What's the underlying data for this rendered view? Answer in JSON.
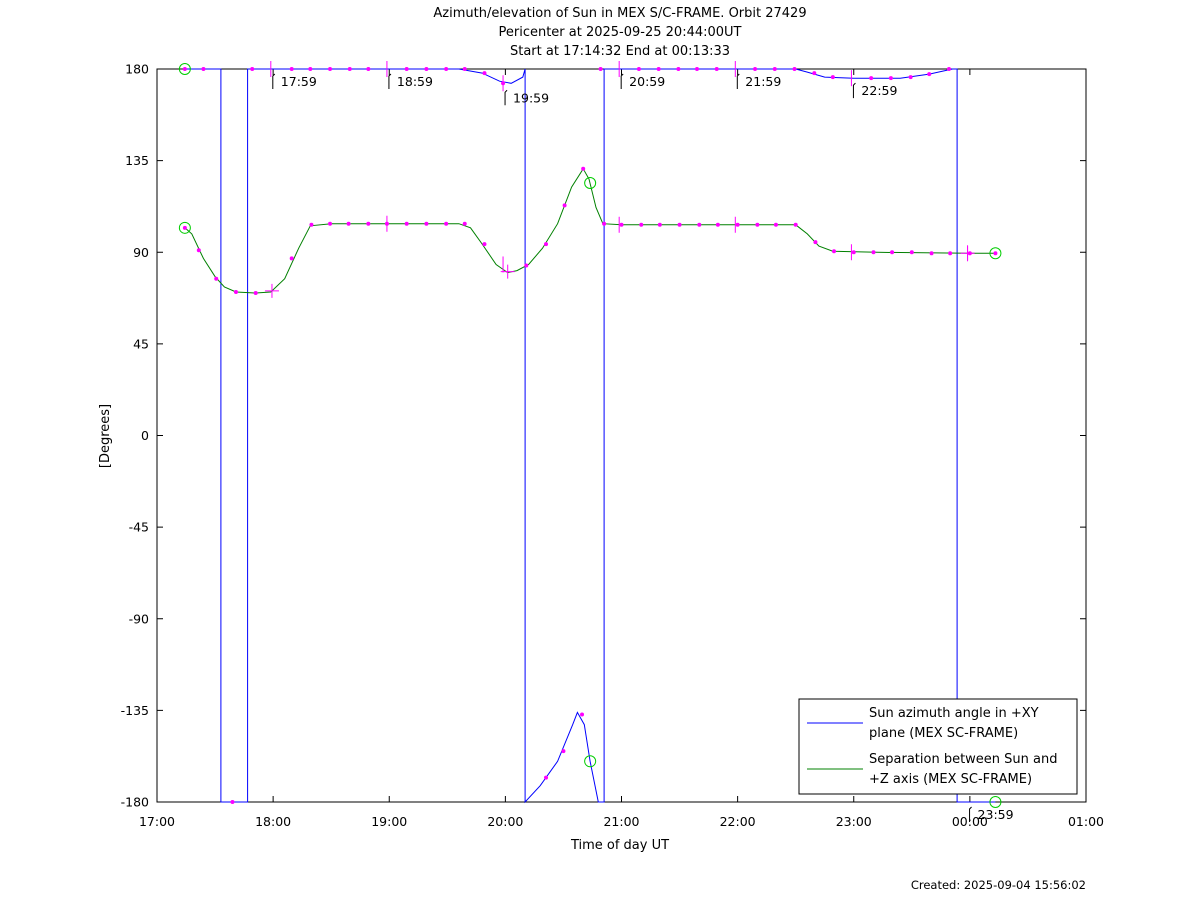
{
  "chart_data": {
    "type": "line",
    "title_lines": [
      "Azimuth/elevation of Sun in MEX S/C-FRAME.  Orbit 27429",
      "Pericenter at 2025-09-25 20:44:00UT",
      "Start at 17:14:32 End at 00:13:33"
    ],
    "xlabel": "Time of day UT",
    "ylabel": "[Degrees]",
    "footer": "Created: 2025-09-04 15:56:02",
    "xlim_hours": [
      17.0,
      25.0
    ],
    "ylim": [
      -180,
      180
    ],
    "xticks": [
      {
        "h": 17,
        "label": "17:00"
      },
      {
        "h": 18,
        "label": "18:00"
      },
      {
        "h": 19,
        "label": "19:00"
      },
      {
        "h": 20,
        "label": "20:00"
      },
      {
        "h": 21,
        "label": "21:00"
      },
      {
        "h": 22,
        "label": "22:00"
      },
      {
        "h": 23,
        "label": "23:00"
      },
      {
        "h": 24,
        "label": "00:00"
      },
      {
        "h": 25,
        "label": "01:00"
      }
    ],
    "yticks": [
      {
        "v": 180,
        "label": "180"
      },
      {
        "v": 135,
        "label": "135"
      },
      {
        "v": 90,
        "label": "90"
      },
      {
        "v": 45,
        "label": "45"
      },
      {
        "v": 0,
        "label": "0"
      },
      {
        "v": -45,
        "label": "-45"
      },
      {
        "v": -90,
        "label": "-90"
      },
      {
        "v": -135,
        "label": "-135"
      },
      {
        "v": -180,
        "label": "-180"
      }
    ],
    "legend": {
      "placement": "lower-right",
      "entries": [
        {
          "lines": [
            "Sun azimuth angle in +XY",
            "plane (MEX SC-FRAME)"
          ],
          "color": "#0000ff"
        },
        {
          "lines": [
            "Separation between Sun and",
            "+Z axis (MEX SC-FRAME)"
          ],
          "color": "#008000"
        }
      ]
    },
    "series": [
      {
        "name": "Sun azimuth angle in +XY plane (MEX SC-FRAME)",
        "color": "#0000ff",
        "points": [
          [
            17.24,
            180
          ],
          [
            17.55,
            180
          ],
          [
            17.55,
            -180
          ],
          [
            17.78,
            -180
          ],
          [
            17.78,
            180
          ],
          [
            18.0,
            180
          ],
          [
            19.0,
            180
          ],
          [
            19.6,
            180
          ],
          [
            19.8,
            178
          ],
          [
            19.95,
            174
          ],
          [
            20.05,
            173
          ],
          [
            20.15,
            176
          ],
          [
            20.17,
            180
          ],
          [
            20.17,
            -180
          ],
          [
            20.3,
            -172
          ],
          [
            20.45,
            -160
          ],
          [
            20.58,
            -142
          ],
          [
            20.62,
            -136
          ],
          [
            20.68,
            -142
          ],
          [
            20.73,
            -160
          ],
          [
            20.8,
            -180
          ],
          [
            20.85,
            -180
          ],
          [
            20.85,
            180
          ],
          [
            21.0,
            180
          ],
          [
            22.5,
            180
          ],
          [
            22.6,
            178.5
          ],
          [
            22.75,
            176
          ],
          [
            23.0,
            175.5
          ],
          [
            23.4,
            175.5
          ],
          [
            23.65,
            177.5
          ],
          [
            23.85,
            180
          ],
          [
            23.89,
            180
          ],
          [
            23.89,
            -180
          ],
          [
            24.22,
            -180
          ]
        ]
      },
      {
        "name": "Separation between Sun and +Z axis (MEX SC-FRAME)",
        "color": "#008000",
        "points": [
          [
            17.24,
            102
          ],
          [
            17.3,
            99
          ],
          [
            17.4,
            87
          ],
          [
            17.5,
            78
          ],
          [
            17.58,
            73
          ],
          [
            17.68,
            70.5
          ],
          [
            17.85,
            70
          ],
          [
            17.98,
            70.5
          ],
          [
            18.1,
            77
          ],
          [
            18.22,
            92
          ],
          [
            18.32,
            103
          ],
          [
            18.5,
            104
          ],
          [
            19.6,
            104
          ],
          [
            19.7,
            102
          ],
          [
            19.8,
            94
          ],
          [
            19.92,
            84
          ],
          [
            20.02,
            80
          ],
          [
            20.1,
            81
          ],
          [
            20.2,
            84
          ],
          [
            20.32,
            92
          ],
          [
            20.45,
            104
          ],
          [
            20.57,
            122
          ],
          [
            20.67,
            131
          ],
          [
            20.72,
            126
          ],
          [
            20.78,
            112
          ],
          [
            20.84,
            104
          ],
          [
            21.0,
            103.5
          ],
          [
            22.5,
            103.5
          ],
          [
            22.6,
            99
          ],
          [
            22.7,
            93
          ],
          [
            22.82,
            90.5
          ],
          [
            23.2,
            90
          ],
          [
            24.0,
            89.5
          ],
          [
            24.22,
            89.5
          ]
        ]
      }
    ],
    "circle_markers": [
      [
        17.24,
        180
      ],
      [
        17.24,
        102
      ],
      [
        20.73,
        124
      ],
      [
        20.73,
        -160
      ],
      [
        24.22,
        89.5
      ],
      [
        24.22,
        -180
      ]
    ],
    "pass_markers": [
      [
        17.99,
        71
      ],
      [
        20.02,
        80.5
      ],
      [
        23.98,
        89.5
      ]
    ],
    "time_markers": [
      {
        "h": 17.98,
        "v": 180,
        "label": "17:59"
      },
      {
        "h": 18.98,
        "v": 180,
        "label": "18:59"
      },
      {
        "h": 19.98,
        "v": 172,
        "label": "19:59"
      },
      {
        "h": 20.98,
        "v": 180,
        "label": "20:59"
      },
      {
        "h": 21.98,
        "v": 180,
        "label": "21:59"
      },
      {
        "h": 22.98,
        "v": 175.5,
        "label": "22:59"
      },
      {
        "h": 23.98,
        "v": -180,
        "label": "23:59"
      }
    ],
    "dot_markers": [
      [
        17.24,
        180
      ],
      [
        17.4,
        180
      ],
      [
        17.65,
        -180
      ],
      [
        17.82,
        180
      ],
      [
        18.16,
        180
      ],
      [
        18.32,
        180
      ],
      [
        18.49,
        180
      ],
      [
        18.66,
        180
      ],
      [
        18.82,
        180
      ],
      [
        19.15,
        180
      ],
      [
        19.32,
        180
      ],
      [
        19.49,
        180
      ],
      [
        19.65,
        180
      ],
      [
        19.82,
        178
      ],
      [
        19.98,
        173
      ],
      [
        20.35,
        -168
      ],
      [
        20.5,
        -155
      ],
      [
        20.66,
        -137
      ],
      [
        20.82,
        180
      ],
      [
        21.15,
        180
      ],
      [
        21.32,
        180
      ],
      [
        21.49,
        180
      ],
      [
        21.65,
        180
      ],
      [
        21.82,
        180
      ],
      [
        22.15,
        180
      ],
      [
        22.32,
        180
      ],
      [
        22.49,
        180
      ],
      [
        22.66,
        178
      ],
      [
        22.82,
        176
      ],
      [
        23.15,
        175.5
      ],
      [
        23.32,
        175.5
      ],
      [
        23.49,
        176
      ],
      [
        23.65,
        177.5
      ],
      [
        23.82,
        180
      ],
      [
        17.24,
        102
      ],
      [
        17.36,
        91
      ],
      [
        17.51,
        77
      ],
      [
        17.68,
        70.5
      ],
      [
        17.85,
        70
      ],
      [
        18.16,
        87
      ],
      [
        18.33,
        103.5
      ],
      [
        18.49,
        104
      ],
      [
        18.65,
        104
      ],
      [
        18.82,
        104
      ],
      [
        18.98,
        104
      ],
      [
        19.15,
        104
      ],
      [
        19.32,
        104
      ],
      [
        19.49,
        104
      ],
      [
        19.65,
        104
      ],
      [
        19.82,
        94
      ],
      [
        20.18,
        83.5
      ],
      [
        20.35,
        94
      ],
      [
        20.51,
        113
      ],
      [
        20.67,
        131
      ],
      [
        20.85,
        104
      ],
      [
        21.0,
        103.5
      ],
      [
        21.17,
        103.5
      ],
      [
        21.33,
        103.5
      ],
      [
        21.5,
        103.5
      ],
      [
        21.67,
        103.5
      ],
      [
        21.83,
        103.5
      ],
      [
        22.0,
        103.5
      ],
      [
        22.17,
        103.5
      ],
      [
        22.33,
        103.5
      ],
      [
        22.5,
        103.5
      ],
      [
        22.67,
        95
      ],
      [
        22.83,
        90.5
      ],
      [
        23.0,
        90
      ],
      [
        23.17,
        90
      ],
      [
        23.33,
        90
      ],
      [
        23.5,
        90
      ],
      [
        23.67,
        89.5
      ],
      [
        23.83,
        89.5
      ],
      [
        24.0,
        89.5
      ],
      [
        24.22,
        89.5
      ]
    ],
    "tick_markers": [
      [
        17.98,
        180
      ],
      [
        18.98,
        180
      ],
      [
        19.98,
        173
      ],
      [
        20.98,
        180
      ],
      [
        21.98,
        180
      ],
      [
        22.98,
        175.5
      ],
      [
        18.98,
        104
      ],
      [
        19.98,
        84
      ],
      [
        20.98,
        103.5
      ],
      [
        21.98,
        103.5
      ],
      [
        22.98,
        90
      ],
      [
        23.98,
        89.5
      ]
    ],
    "marker_color": "#ff00ff",
    "circle_color": "#00cc00"
  }
}
